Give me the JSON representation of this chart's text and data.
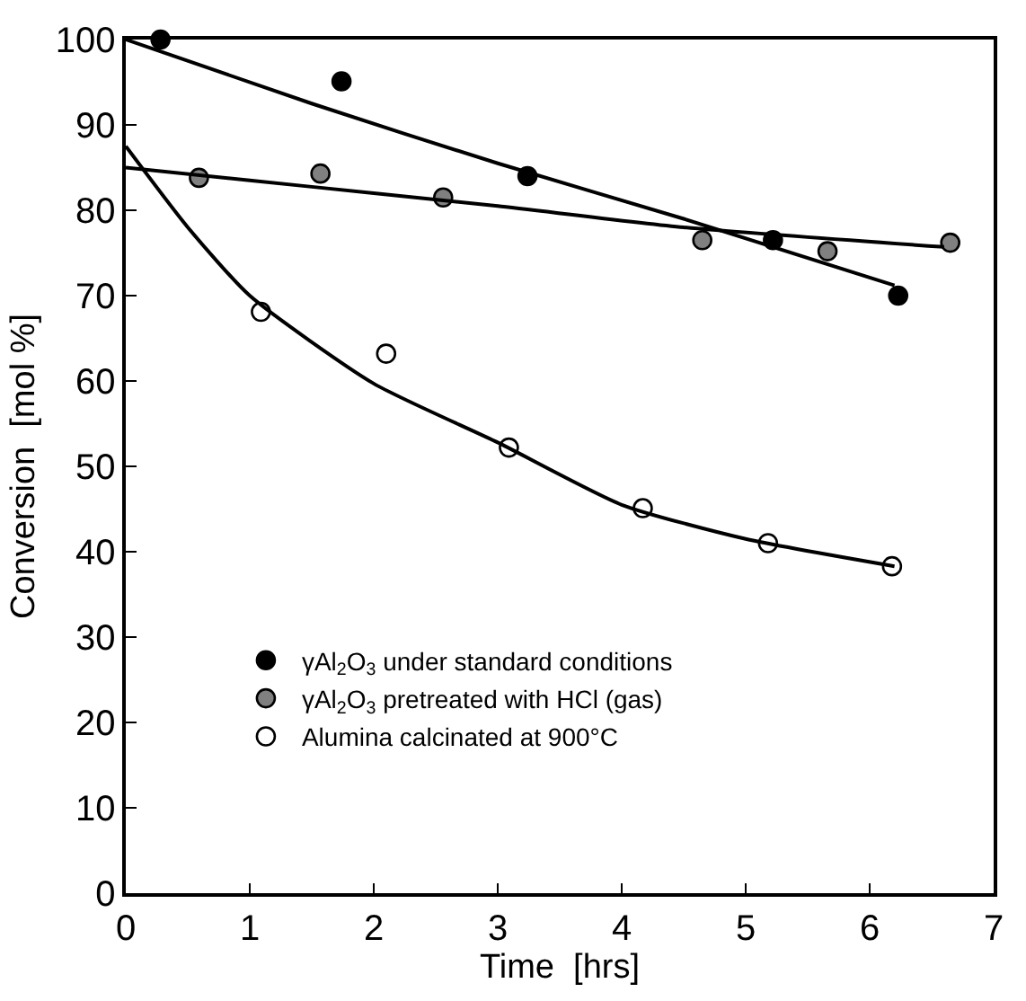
{
  "chart_data": {
    "type": "scatter",
    "xlabel": "Time  [hrs]",
    "ylabel": "Conversion  [mol %]",
    "xlim": [
      0,
      7
    ],
    "ylim": [
      0,
      100
    ],
    "xticks": [
      0,
      1,
      2,
      3,
      4,
      5,
      6,
      7
    ],
    "yticks": [
      0,
      10,
      20,
      30,
      40,
      50,
      60,
      70,
      80,
      90,
      100
    ],
    "grid": false,
    "legend": "bottom left",
    "series": [
      {
        "name": "γAl$_{2}$O$_{3}$ under standard conditions",
        "color": "#000000",
        "marker": "circle",
        "x": [
          0.28,
          1.74,
          3.24,
          5.22,
          6.23
        ],
        "values": [
          100,
          95.1,
          84,
          76.5,
          70
        ]
      },
      {
        "name": "γAl$_{2}$O$_{3}$ pretreated with HCl (gas)",
        "color": "#808080",
        "marker": "circle",
        "x": [
          0.59,
          1.57,
          2.56,
          4.65,
          5.66,
          6.65
        ],
        "values": [
          83.8,
          84.3,
          81.5,
          76.5,
          75.2,
          76.2
        ]
      },
      {
        "name": "Alumina calcinated at 900°C",
        "color": "#ffffff",
        "marker": "circle",
        "x": [
          1.09,
          2.1,
          3.09,
          4.17,
          5.18,
          6.18
        ],
        "values": [
          68.1,
          63.2,
          52.2,
          45.1,
          41.0,
          38.3
        ]
      },
      {
        "type": "line",
        "color": "#000000",
        "marker": "none",
        "x": [
          0,
          1.5,
          3,
          4.5,
          6.2
        ],
        "values": [
          100,
          92.5,
          85.5,
          79,
          71.2
        ]
      },
      {
        "type": "line",
        "color": "#000000",
        "marker": "none",
        "x": [
          0,
          1,
          2,
          3,
          4.5,
          6.6
        ],
        "values": [
          85,
          83.5,
          82,
          80.5,
          78,
          75.7
        ]
      },
      {
        "type": "line",
        "color": "#000000",
        "marker": "none",
        "x": [
          0,
          0.5,
          1,
          2,
          3,
          4,
          5,
          6.2
        ],
        "values": [
          87.5,
          78,
          70,
          59.7,
          52.8,
          45.5,
          41.5,
          38.3
        ]
      }
    ]
  }
}
